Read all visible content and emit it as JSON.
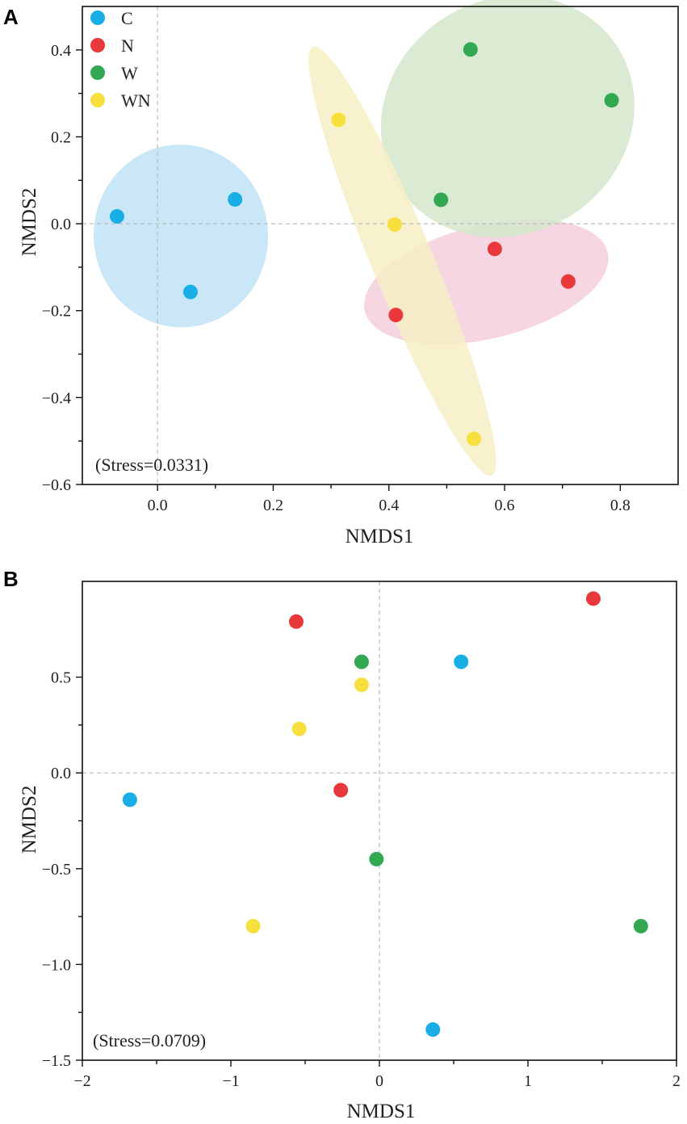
{
  "chart_data": [
    {
      "panel_label": "A",
      "type": "scatter",
      "xlabel": "NMDS1",
      "ylabel": "NMDS2",
      "xlim": [
        -0.13,
        0.9
      ],
      "ylim": [
        -0.6,
        0.5
      ],
      "xticks": [
        0.0,
        0.2,
        0.4,
        0.6,
        0.8
      ],
      "xtick_labels": [
        "0.0",
        "0.2",
        "0.4",
        "0.6",
        "0.8"
      ],
      "yticks": [
        -0.6,
        -0.4,
        -0.2,
        0.0,
        0.2,
        0.4
      ],
      "ytick_labels": [
        "−0.6",
        "−0.4",
        "−0.2",
        "0.0",
        "0.2",
        "0.4"
      ],
      "annotation": "(Stress=0.0331)",
      "legend": {
        "placement": "top-left",
        "entries": [
          "C",
          "N",
          "W",
          "WN"
        ]
      },
      "series": [
        {
          "name": "C",
          "color": "#1aaee6",
          "ellipse_color": "#bfe3f4",
          "x": [
            -0.07,
            0.134,
            0.057
          ],
          "y": [
            0.017,
            0.056,
            -0.157
          ]
        },
        {
          "name": "N",
          "color": "#e8383b",
          "ellipse_color": "#f3cfdd",
          "x": [
            0.583,
            0.71,
            0.412
          ],
          "y": [
            -0.058,
            -0.133,
            -0.21
          ]
        },
        {
          "name": "W",
          "color": "#32a852",
          "ellipse_color": "#d5e8cb",
          "x": [
            0.541,
            0.785,
            0.49
          ],
          "y": [
            0.401,
            0.284,
            0.055
          ]
        },
        {
          "name": "WN",
          "color": "#f7e03d",
          "ellipse_color": "#f6efc4",
          "x": [
            0.313,
            0.41,
            0.547
          ],
          "y": [
            0.239,
            -0.002,
            -0.495
          ]
        }
      ]
    },
    {
      "panel_label": "B",
      "type": "scatter",
      "xlabel": "NMDS1",
      "ylabel": "NMDS2",
      "xlim": [
        -2,
        2
      ],
      "ylim": [
        -1.5,
        1.0
      ],
      "xticks": [
        -2,
        -1,
        0,
        1,
        2
      ],
      "xtick_labels": [
        "−2",
        "−1",
        "0",
        "1",
        "2"
      ],
      "yticks": [
        -1.5,
        -1.0,
        -0.5,
        0.0,
        0.5
      ],
      "ytick_labels": [
        "−1.5",
        "−1.0",
        "−0.5",
        "0.0",
        "0.5"
      ],
      "annotation": "(Stress=0.0709)",
      "series": [
        {
          "name": "C",
          "color": "#1aaee6",
          "x": [
            0.55,
            -1.68,
            0.36
          ],
          "y": [
            0.58,
            -0.14,
            -1.34
          ]
        },
        {
          "name": "N",
          "color": "#e8383b",
          "x": [
            1.44,
            -0.56,
            -0.26
          ],
          "y": [
            0.91,
            0.79,
            -0.09
          ]
        },
        {
          "name": "W",
          "color": "#32a852",
          "x": [
            -0.12,
            -0.02,
            1.76
          ],
          "y": [
            0.58,
            -0.45,
            -0.8
          ]
        },
        {
          "name": "WN",
          "color": "#f7e03d",
          "x": [
            -0.12,
            -0.54,
            -0.85
          ],
          "y": [
            0.46,
            0.23,
            -0.8
          ]
        }
      ]
    }
  ]
}
